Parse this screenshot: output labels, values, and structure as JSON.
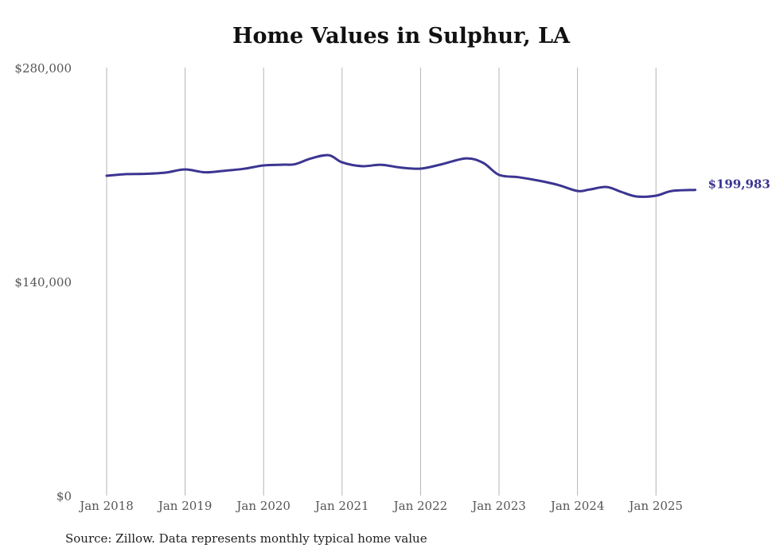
{
  "chart_data": {
    "type": "line",
    "title": "Home Values in Sulphur, LA",
    "xlabel": "",
    "ylabel": "",
    "ylim": [
      0,
      280000
    ],
    "yticks": [
      {
        "value": 0,
        "label": "$0"
      },
      {
        "value": 140000,
        "label": "$140,000"
      },
      {
        "value": 280000,
        "label": "$280,000"
      }
    ],
    "xticks": [
      {
        "value": 2018,
        "label": "Jan 2018"
      },
      {
        "value": 2019,
        "label": "Jan 2019"
      },
      {
        "value": 2020,
        "label": "Jan 2020"
      },
      {
        "value": 2021,
        "label": "Jan 2021"
      },
      {
        "value": 2022,
        "label": "Jan 2022"
      },
      {
        "value": 2023,
        "label": "Jan 2023"
      },
      {
        "value": 2024,
        "label": "Jan 2024"
      },
      {
        "value": 2025,
        "label": "Jan 2025"
      }
    ],
    "xlim": [
      2018,
      2025.5
    ],
    "grid": "vertical",
    "series": [
      {
        "name": "Typical home value",
        "color": "#3b3591",
        "x": [
          2018.0,
          2018.25,
          2018.5,
          2018.75,
          2019.0,
          2019.25,
          2019.5,
          2019.75,
          2020.0,
          2020.25,
          2020.4,
          2020.6,
          2020.83,
          2021.0,
          2021.25,
          2021.5,
          2021.75,
          2022.0,
          2022.25,
          2022.58,
          2022.8,
          2023.0,
          2023.25,
          2023.5,
          2023.75,
          2024.0,
          2024.15,
          2024.37,
          2024.55,
          2024.75,
          2025.0,
          2025.2,
          2025.5
        ],
        "values": [
          209200,
          210300,
          210500,
          211300,
          213400,
          211500,
          212500,
          213800,
          216000,
          216500,
          216800,
          220500,
          222700,
          218000,
          215500,
          216400,
          214600,
          213900,
          216500,
          220600,
          217600,
          209800,
          208300,
          206100,
          203300,
          199300,
          200200,
          201900,
          198800,
          195700,
          196200,
          199300,
          199983
        ]
      }
    ],
    "end_label": "$199,983",
    "source_note": "Source: Zillow. Data represents monthly typical home value"
  }
}
